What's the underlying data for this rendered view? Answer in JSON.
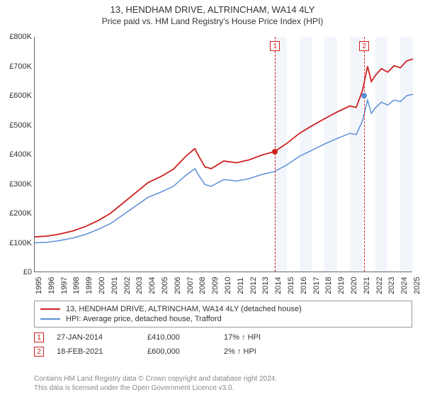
{
  "title": "13, HENDHAM DRIVE, ALTRINCHAM, WA14 4LY",
  "subtitle": "Price paid vs. HM Land Registry's House Price Index (HPI)",
  "chart": {
    "type": "line",
    "x_start_year": 1995,
    "x_end_year": 2025,
    "y_min": 0,
    "y_max": 800000,
    "y_tick_step": 100000,
    "y_tick_labels": [
      "£0",
      "£100K",
      "£200K",
      "£300K",
      "£400K",
      "£500K",
      "£600K",
      "£700K",
      "£800K"
    ],
    "x_tick_labels": [
      "1995",
      "1996",
      "1997",
      "1998",
      "1999",
      "2000",
      "2001",
      "2002",
      "2003",
      "2004",
      "2005",
      "2006",
      "2007",
      "2008",
      "2009",
      "2010",
      "2011",
      "2012",
      "2013",
      "2014",
      "2015",
      "2016",
      "2017",
      "2018",
      "2019",
      "2020",
      "2021",
      "2022",
      "2023",
      "2024",
      "2025"
    ],
    "shaded_bands_years": [
      [
        2014,
        2015
      ],
      [
        2016,
        2017
      ],
      [
        2018,
        2019
      ],
      [
        2020,
        2021
      ],
      [
        2022,
        2023
      ],
      [
        2024,
        2025
      ]
    ],
    "series": [
      {
        "name": "subject",
        "color": "#d02020",
        "width": 1.8,
        "legend": "13, HENDHAM DRIVE, ALTRINCHAM, WA14 4LY (detached house)",
        "points": [
          [
            1995,
            120000
          ],
          [
            1996,
            123000
          ],
          [
            1997,
            130000
          ],
          [
            1998,
            140000
          ],
          [
            1999,
            155000
          ],
          [
            2000,
            175000
          ],
          [
            2001,
            200000
          ],
          [
            2002,
            235000
          ],
          [
            2003,
            270000
          ],
          [
            2004,
            305000
          ],
          [
            2005,
            325000
          ],
          [
            2006,
            350000
          ],
          [
            2007,
            395000
          ],
          [
            2007.7,
            420000
          ],
          [
            2008,
            395000
          ],
          [
            2008.5,
            358000
          ],
          [
            2009,
            352000
          ],
          [
            2010,
            378000
          ],
          [
            2011,
            372000
          ],
          [
            2012,
            382000
          ],
          [
            2013,
            398000
          ],
          [
            2014,
            410000
          ],
          [
            2015,
            438000
          ],
          [
            2016,
            472000
          ],
          [
            2017,
            498000
          ],
          [
            2018,
            522000
          ],
          [
            2019,
            545000
          ],
          [
            2020,
            565000
          ],
          [
            2020.5,
            560000
          ],
          [
            2021,
            618000
          ],
          [
            2021.4,
            700000
          ],
          [
            2021.7,
            648000
          ],
          [
            2022,
            668000
          ],
          [
            2022.5,
            692000
          ],
          [
            2023,
            680000
          ],
          [
            2023.5,
            702000
          ],
          [
            2024,
            695000
          ],
          [
            2024.5,
            718000
          ],
          [
            2025,
            725000
          ]
        ]
      },
      {
        "name": "hpi",
        "color": "#5b8fd6",
        "width": 1.5,
        "legend": "HPI: Average price, detached house, Trafford",
        "points": [
          [
            1995,
            100000
          ],
          [
            1996,
            102000
          ],
          [
            1997,
            108000
          ],
          [
            1998,
            116000
          ],
          [
            1999,
            128000
          ],
          [
            2000,
            145000
          ],
          [
            2001,
            165000
          ],
          [
            2002,
            195000
          ],
          [
            2003,
            225000
          ],
          [
            2004,
            255000
          ],
          [
            2005,
            272000
          ],
          [
            2006,
            292000
          ],
          [
            2007,
            330000
          ],
          [
            2007.7,
            352000
          ],
          [
            2008,
            330000
          ],
          [
            2008.5,
            298000
          ],
          [
            2009,
            292000
          ],
          [
            2010,
            315000
          ],
          [
            2011,
            310000
          ],
          [
            2012,
            318000
          ],
          [
            2013,
            332000
          ],
          [
            2014,
            342000
          ],
          [
            2015,
            365000
          ],
          [
            2016,
            394000
          ],
          [
            2017,
            415000
          ],
          [
            2018,
            436000
          ],
          [
            2019,
            455000
          ],
          [
            2020,
            472000
          ],
          [
            2020.5,
            468000
          ],
          [
            2021,
            515000
          ],
          [
            2021.4,
            585000
          ],
          [
            2021.7,
            540000
          ],
          [
            2022,
            558000
          ],
          [
            2022.5,
            578000
          ],
          [
            2023,
            568000
          ],
          [
            2023.5,
            585000
          ],
          [
            2024,
            580000
          ],
          [
            2024.5,
            600000
          ],
          [
            2025,
            605000
          ]
        ]
      }
    ],
    "markers": [
      {
        "label": "1",
        "year": 2014.07,
        "price": 410000,
        "dot_color": "#d02020"
      },
      {
        "label": "2",
        "year": 2021.13,
        "price": 600000,
        "dot_color": "#5b8fd6"
      }
    ]
  },
  "events": [
    {
      "label": "1",
      "date": "27-JAN-2014",
      "price": "£410,000",
      "hpi": "17% ↑ HPI"
    },
    {
      "label": "2",
      "date": "18-FEB-2021",
      "price": "£600,000",
      "hpi": "2% ↑ HPI"
    }
  ],
  "footer_line1": "Contains HM Land Registry data © Crown copyright and database right 2024.",
  "footer_line2": "This data is licensed under the Open Government Licence v3.0."
}
